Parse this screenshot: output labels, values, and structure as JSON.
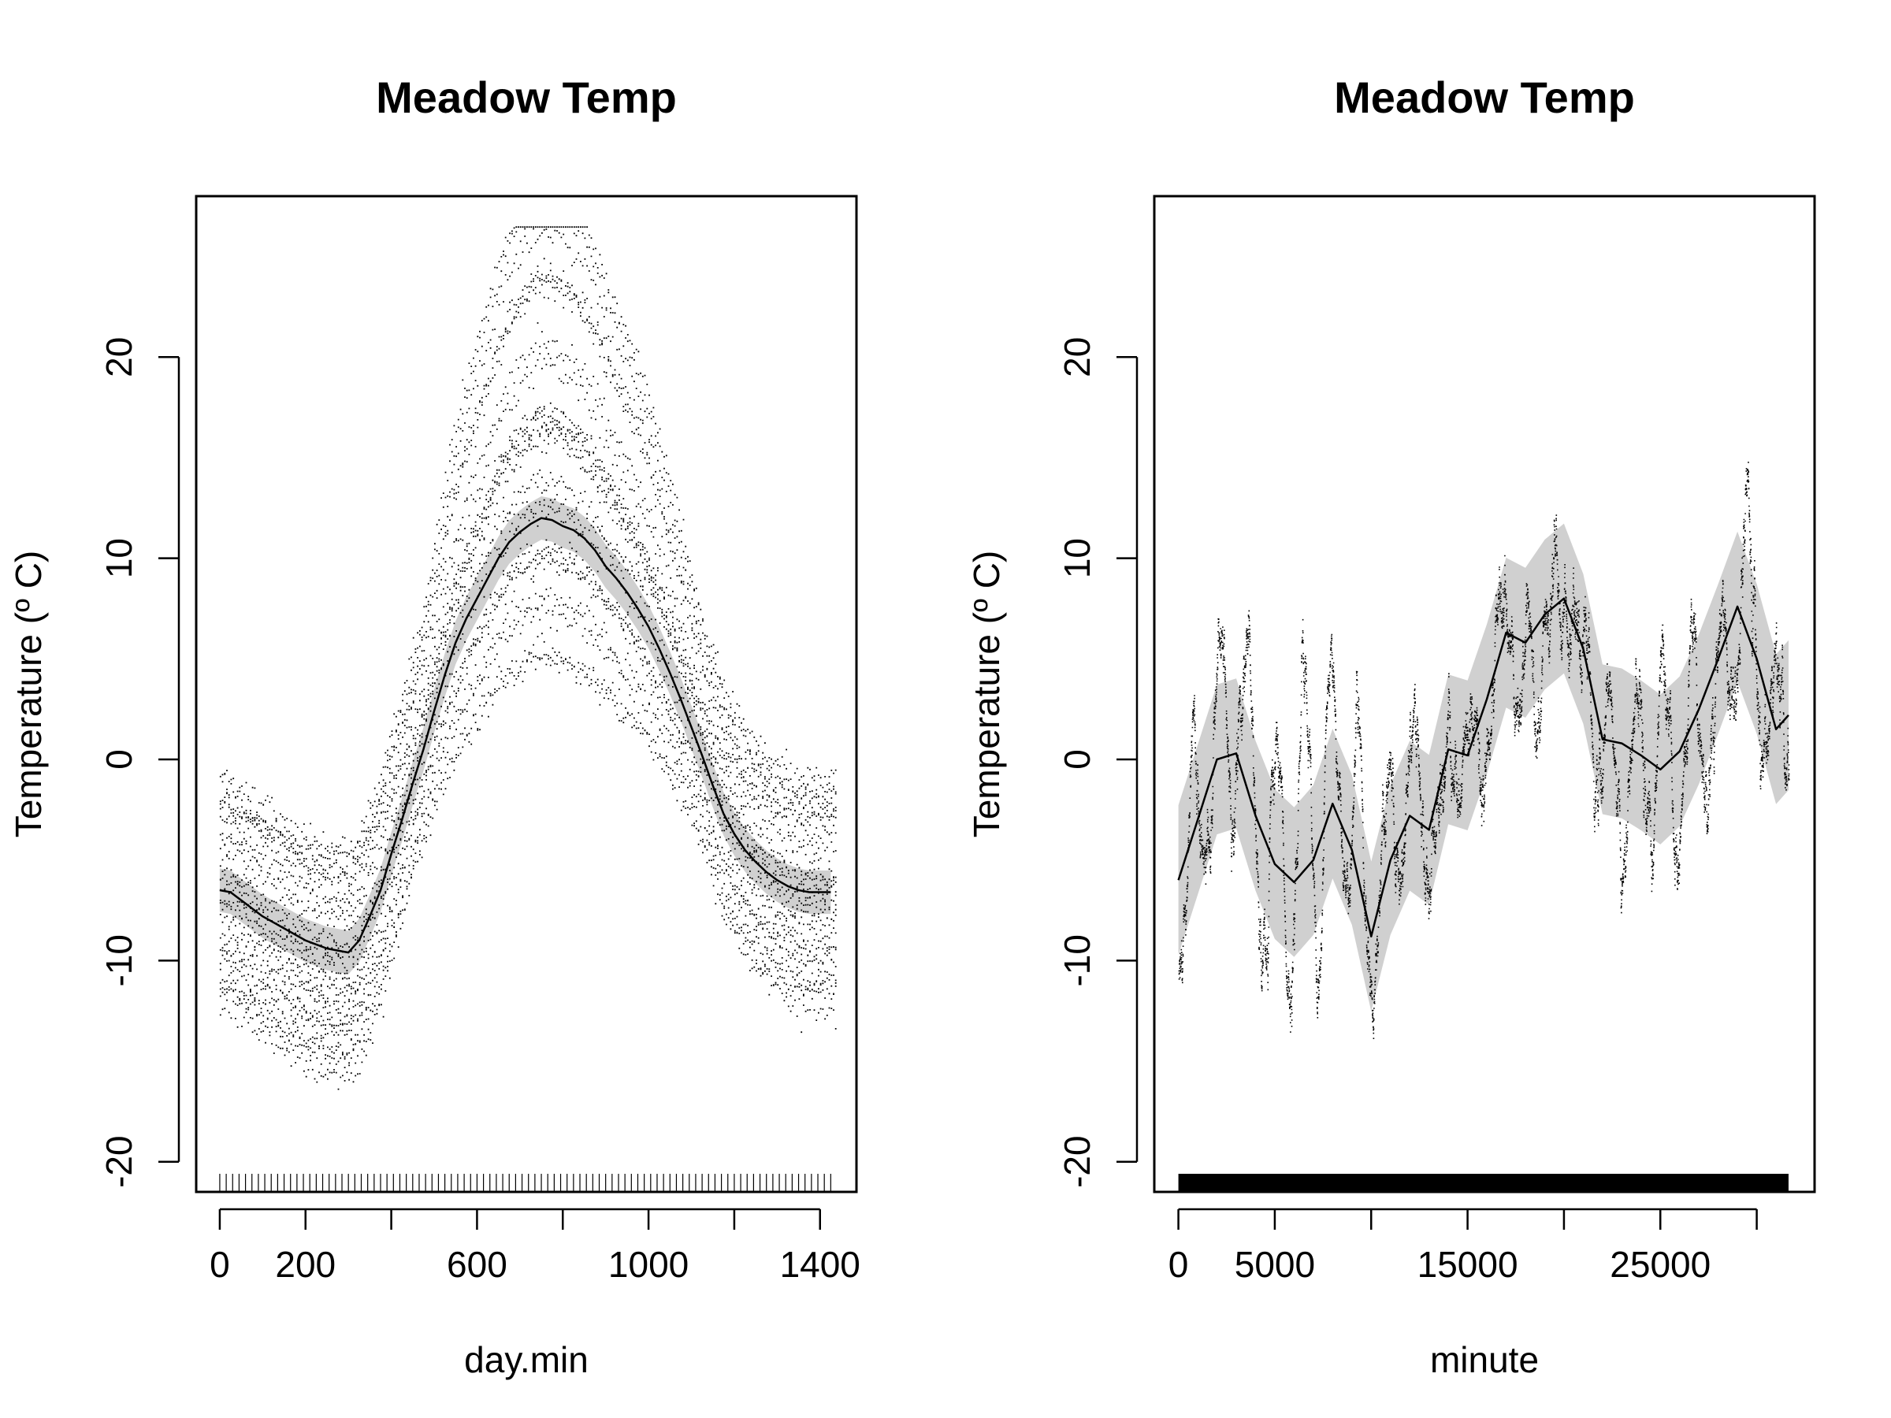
{
  "chart_data": [
    {
      "type": "scatter",
      "title": "Meadow Temp",
      "xlabel": "day.min",
      "ylabel": "Temperature (º C)",
      "xlim": [
        -55,
        1485
      ],
      "ylim": [
        -21.5,
        28
      ],
      "x_ticks": [
        0,
        200,
        400,
        600,
        800,
        1000,
        1200,
        1400
      ],
      "x_tick_labels": [
        "0",
        "200",
        "",
        "600",
        "",
        "1000",
        "",
        "1400"
      ],
      "y_ticks": [
        -20,
        -10,
        0,
        10,
        20
      ],
      "y_tick_labels": [
        "-20",
        "-10",
        "0",
        "10",
        "20"
      ],
      "grid": false,
      "legend": "none",
      "rug": "every 15 minutes from 0 to 1425",
      "series": [
        {
          "role": "smooth fit",
          "x": [
            0,
            25,
            50,
            75,
            100,
            125,
            150,
            175,
            200,
            225,
            250,
            275,
            300,
            325,
            350,
            375,
            400,
            425,
            450,
            475,
            500,
            525,
            550,
            575,
            600,
            625,
            650,
            675,
            700,
            725,
            750,
            775,
            800,
            825,
            850,
            875,
            900,
            925,
            950,
            975,
            1000,
            1025,
            1050,
            1075,
            1100,
            1125,
            1150,
            1175,
            1200,
            1225,
            1250,
            1275,
            1300,
            1325,
            1350,
            1375,
            1400,
            1425
          ],
          "y": [
            -6.5,
            -6.6,
            -7.0,
            -7.4,
            -7.8,
            -8.1,
            -8.4,
            -8.7,
            -9.0,
            -9.2,
            -9.4,
            -9.5,
            -9.6,
            -9.0,
            -7.8,
            -6.5,
            -4.7,
            -3.0,
            -1.2,
            0.5,
            2.4,
            4.2,
            5.8,
            7.0,
            8.0,
            9.0,
            10.0,
            10.8,
            11.3,
            11.7,
            12.0,
            11.9,
            11.6,
            11.4,
            11.0,
            10.4,
            9.6,
            9.0,
            8.3,
            7.5,
            6.6,
            5.5,
            4.3,
            3.0,
            1.6,
            0.2,
            -1.3,
            -2.7,
            -3.7,
            -4.5,
            -5.1,
            -5.6,
            -6.0,
            -6.3,
            -6.5,
            -6.6,
            -6.6,
            -6.6
          ],
          "se": 0.55
        },
        {
          "role": "observations",
          "description": "~one reading per 5 minutes on each of 22 days"
        }
      ]
    },
    {
      "type": "scatter",
      "title": "Meadow Temp",
      "xlabel": "minute",
      "ylabel": "Temperature (º C)",
      "xlim": [
        -1250,
        33000
      ],
      "ylim": [
        -21.5,
        28
      ],
      "x_ticks": [
        0,
        5000,
        10000,
        15000,
        20000,
        25000,
        30000
      ],
      "x_tick_labels": [
        "0",
        "5000",
        "",
        "15000",
        "",
        "25000",
        ""
      ],
      "y_ticks": [
        -20,
        -10,
        0,
        10,
        20
      ],
      "y_tick_labels": [
        "-20",
        "-10",
        "0",
        "10",
        "20"
      ],
      "grid": false,
      "legend": "none",
      "rug": "dense, 0 to 31650",
      "series": [
        {
          "role": "smooth fit",
          "x": [
            0,
            1000,
            2000,
            3000,
            4000,
            5000,
            6000,
            7000,
            8000,
            9000,
            10000,
            11000,
            12000,
            13000,
            14000,
            15000,
            16000,
            17000,
            18000,
            19000,
            20000,
            21000,
            22000,
            23000,
            24000,
            25000,
            26000,
            27000,
            28000,
            29000,
            30000,
            31000,
            31650
          ],
          "y": [
            -6.0,
            -3.0,
            0.0,
            0.3,
            -2.8,
            -5.2,
            -6.1,
            -5.0,
            -2.2,
            -4.5,
            -8.8,
            -5.0,
            -2.8,
            -3.5,
            0.5,
            0.2,
            3.0,
            6.3,
            5.8,
            7.2,
            8.0,
            5.5,
            1.0,
            0.8,
            0.2,
            -0.5,
            0.4,
            2.5,
            5.0,
            7.6,
            5.0,
            1.5,
            2.2
          ],
          "se": 1.9
        },
        {
          "role": "observations",
          "description": "one reading per 5 minutes over ~22 days"
        }
      ]
    }
  ]
}
